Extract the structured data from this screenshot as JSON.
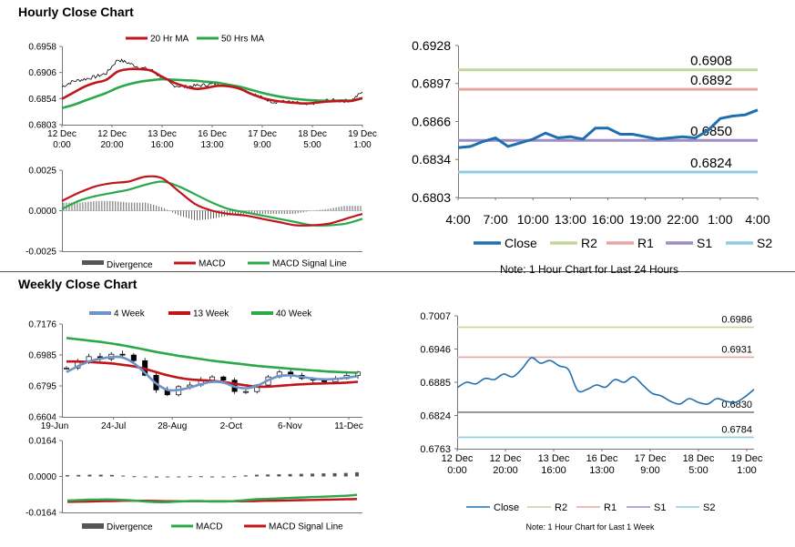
{
  "sections": {
    "hourly_title": "Hourly Close Chart",
    "weekly_title": "Weekly Close Chart"
  },
  "colors": {
    "ma20": "#c0151b",
    "ma50": "#2aa84a",
    "close": "#1f6fb0",
    "r2": "#c4d79b",
    "r1": "#e6a6a6",
    "s1": "#9f8cc4",
    "s2": "#8ecde3",
    "w4": "#6e93c8",
    "w13": "#c0151b",
    "w40": "#2aa84a",
    "divergence": "#555555",
    "gray_level": "#808080"
  },
  "chart_data": [
    {
      "id": "hourly_price",
      "type": "line",
      "legend": [
        "20 Hr MA",
        "50 Hrs MA"
      ],
      "ylim": [
        0.6803,
        0.6958
      ],
      "yticks": [
        "0.6958",
        "0.6906",
        "0.6854",
        "0.6803"
      ],
      "xticks": [
        [
          "12 Dec",
          "0:00"
        ],
        [
          "12 Dec",
          "20:00"
        ],
        [
          "13 Dec",
          "16:00"
        ],
        [
          "16 Dec",
          "13:00"
        ],
        [
          "17 Dec",
          "9:00"
        ],
        [
          "18 Dec",
          "5:00"
        ],
        [
          "19 Dec",
          "1:00"
        ]
      ],
      "series": [
        {
          "name": "Close",
          "color": "#000000",
          "values": [
            0.6878,
            0.6889,
            0.6893,
            0.6898,
            0.6905,
            0.6932,
            0.6925,
            0.6916,
            0.6912,
            0.6895,
            0.6881,
            0.6878,
            0.688,
            0.6882,
            0.6885,
            0.6881,
            0.6876,
            0.6866,
            0.6856,
            0.6848,
            0.6849,
            0.6846,
            0.6842,
            0.6848,
            0.6852,
            0.685,
            0.6851,
            0.6868
          ]
        },
        {
          "name": "20 Hr MA",
          "color": "#c0151b",
          "values": [
            0.6854,
            0.6866,
            0.6878,
            0.6886,
            0.6892,
            0.6908,
            0.6913,
            0.6913,
            0.691,
            0.6898,
            0.6887,
            0.6879,
            0.6874,
            0.6876,
            0.688,
            0.6879,
            0.6874,
            0.6864,
            0.6856,
            0.6851,
            0.6848,
            0.6846,
            0.6845,
            0.6847,
            0.6849,
            0.685,
            0.685,
            0.6856
          ]
        },
        {
          "name": "50 Hrs MA",
          "color": "#2aa84a",
          "values": [
            0.6836,
            0.6842,
            0.685,
            0.6858,
            0.6866,
            0.6876,
            0.6883,
            0.6888,
            0.6891,
            0.6893,
            0.6892,
            0.6891,
            0.689,
            0.6888,
            0.6886,
            0.6882,
            0.6878,
            0.6872,
            0.6866,
            0.6861,
            0.6857,
            0.6854,
            0.6852,
            0.6851,
            0.685,
            0.6851,
            0.6851,
            0.6855
          ]
        }
      ]
    },
    {
      "id": "hourly_macd",
      "type": "line",
      "legend": [
        "Divergence",
        "MACD",
        "MACD Signal Line"
      ],
      "ylim": [
        -0.0025,
        0.0025
      ],
      "yticks": [
        "0.0025",
        "0.0000",
        "-0.0025"
      ],
      "series": [
        {
          "name": "MACD",
          "color": "#c0151b",
          "values": [
            0.0006,
            0.0011,
            0.0015,
            0.0017,
            0.0018,
            0.0021,
            0.002,
            0.0012,
            0.0004,
            0.0,
            -0.0002,
            -0.0003,
            -0.0005,
            -0.0007,
            -0.0009,
            -0.0009,
            -0.0008,
            -0.0005,
            -0.0002
          ]
        },
        {
          "name": "MACD Signal Line",
          "color": "#2aa84a",
          "values": [
            0.0001,
            0.0006,
            0.0009,
            0.0011,
            0.0013,
            0.0016,
            0.0018,
            0.0015,
            0.001,
            0.0005,
            0.0001,
            -0.0001,
            -0.0003,
            -0.0005,
            -0.0007,
            -0.0009,
            -0.0009,
            -0.0008,
            -0.0005
          ]
        },
        {
          "name": "Divergence",
          "color": "#555555",
          "values": [
            0.0005,
            0.0005,
            0.0006,
            0.0006,
            0.0005,
            0.0005,
            0.0002,
            -0.0003,
            -0.0006,
            -0.0005,
            -0.0003,
            -0.0002,
            -0.0002,
            -0.0002,
            -0.0002,
            0.0,
            0.0001,
            0.0003,
            0.0003
          ]
        }
      ]
    },
    {
      "id": "hourly_levels",
      "type": "line",
      "legend": [
        "Close",
        "R2",
        "R1",
        "S1",
        "S2"
      ],
      "ylim": [
        0.6803,
        0.6928
      ],
      "yticks": [
        "0.6928",
        "0.6897",
        "0.6866",
        "0.6834",
        "0.6803"
      ],
      "xticks": [
        "4:00",
        "7:00",
        "10:00",
        "13:00",
        "16:00",
        "19:00",
        "22:00",
        "1:00",
        "4:00"
      ],
      "levels": {
        "R2": 0.6908,
        "R1": 0.6892,
        "S1": 0.685,
        "S2": 0.6824
      },
      "level_labels": {
        "R2": "0.6908",
        "R1": "0.6892",
        "S1": "0.6850",
        "S2": "0.6824"
      },
      "series": [
        {
          "name": "Close",
          "color": "#1f6fb0",
          "values": [
            0.6844,
            0.6845,
            0.6849,
            0.6852,
            0.6845,
            0.6848,
            0.6851,
            0.6856,
            0.6852,
            0.6853,
            0.6851,
            0.686,
            0.686,
            0.6855,
            0.6855,
            0.6853,
            0.6851,
            0.6852,
            0.6853,
            0.6852,
            0.6858,
            0.6868,
            0.687,
            0.6871,
            0.6875
          ]
        }
      ],
      "note": "Note: 1 Hour Chart for Last 24 Hours"
    },
    {
      "id": "weekly_price",
      "type": "line",
      "legend": [
        "4 Week",
        "13 Week",
        "40 Week"
      ],
      "ylim": [
        0.6604,
        0.7176
      ],
      "yticks": [
        "0.7176",
        "0.6985",
        "0.6795",
        "0.6604"
      ],
      "xticks": [
        "19-Jun",
        "24-Jul",
        "28-Aug",
        "2-Oct",
        "6-Nov",
        "11-Dec"
      ],
      "series": [
        {
          "name": "Close",
          "color": "#000000",
          "values": [
            0.6905,
            0.694,
            0.6975,
            0.696,
            0.699,
            0.6985,
            0.695,
            0.686,
            0.677,
            0.674,
            0.679,
            0.68,
            0.683,
            0.685,
            0.683,
            0.676,
            0.676,
            0.68,
            0.685,
            0.688,
            0.686,
            0.684,
            0.683,
            0.682,
            0.684,
            0.686,
            0.688
          ]
        },
        {
          "name": "4 Week",
          "color": "#6e93c8",
          "values": [
            0.688,
            0.6915,
            0.6945,
            0.6962,
            0.6972,
            0.697,
            0.6935,
            0.6875,
            0.681,
            0.677,
            0.677,
            0.6785,
            0.6805,
            0.682,
            0.6815,
            0.679,
            0.678,
            0.6795,
            0.683,
            0.6855,
            0.686,
            0.685,
            0.684,
            0.6835,
            0.6838,
            0.6845,
            0.6855
          ]
        },
        {
          "name": "13 Week",
          "color": "#c0151b",
          "values": [
            0.6945,
            0.6945,
            0.6942,
            0.6938,
            0.6933,
            0.6925,
            0.6915,
            0.69,
            0.688,
            0.686,
            0.6845,
            0.6835,
            0.683,
            0.6825,
            0.6818,
            0.6808,
            0.6798,
            0.679,
            0.679,
            0.6795,
            0.68,
            0.6805,
            0.6808,
            0.681,
            0.6812,
            0.6815,
            0.682
          ]
        },
        {
          "name": "40 Week",
          "color": "#2aa84a",
          "values": [
            0.709,
            0.7082,
            0.7074,
            0.7066,
            0.7056,
            0.7045,
            0.7032,
            0.7018,
            0.7004,
            0.6992,
            0.698,
            0.697,
            0.696,
            0.695,
            0.6942,
            0.6934,
            0.6926,
            0.6918,
            0.6912,
            0.6906,
            0.69,
            0.6895,
            0.689,
            0.6885,
            0.6881,
            0.6878,
            0.6876
          ]
        }
      ]
    },
    {
      "id": "weekly_macd",
      "type": "line",
      "legend": [
        "Divergence",
        "MACD",
        "MACD Signal Line"
      ],
      "ylim": [
        -0.0164,
        0.0164
      ],
      "yticks": [
        "0.0164",
        "0.0000",
        "-0.0164"
      ],
      "series": [
        {
          "name": "MACD",
          "color": "#2aa84a",
          "values": [
            -0.011,
            -0.0108,
            -0.0106,
            -0.0105,
            -0.0105,
            -0.0107,
            -0.011,
            -0.0114,
            -0.0117,
            -0.0117,
            -0.0114,
            -0.0112,
            -0.0112,
            -0.0114,
            -0.0114,
            -0.0112,
            -0.0108,
            -0.0104,
            -0.0102,
            -0.01,
            -0.0098,
            -0.0096,
            -0.0094,
            -0.0092,
            -0.009,
            -0.0088,
            -0.0084
          ]
        },
        {
          "name": "MACD Signal Line",
          "color": "#c0151b",
          "values": [
            -0.0116,
            -0.0115,
            -0.0114,
            -0.0113,
            -0.0112,
            -0.0111,
            -0.0111,
            -0.0111,
            -0.0112,
            -0.0113,
            -0.0113,
            -0.0113,
            -0.0113,
            -0.0113,
            -0.0113,
            -0.0113,
            -0.0113,
            -0.0112,
            -0.0111,
            -0.011,
            -0.0109,
            -0.0108,
            -0.0107,
            -0.0106,
            -0.0105,
            -0.0104,
            -0.0103
          ]
        },
        {
          "name": "Divergence",
          "color": "#555555",
          "values": [
            0.0006,
            0.0007,
            0.0008,
            0.0008,
            0.0007,
            0.0004,
            0.0001,
            -0.0003,
            -0.0005,
            -0.0004,
            -0.0001,
            0.0001,
            0.0001,
            -0.0001,
            -0.0001,
            0.0001,
            0.0005,
            0.0008,
            0.0009,
            0.001,
            0.0011,
            0.0012,
            0.0013,
            0.0014,
            0.0015,
            0.0016,
            0.0019
          ]
        }
      ]
    },
    {
      "id": "weekly_levels",
      "type": "line",
      "legend": [
        "Close",
        "R2",
        "R1",
        "S1",
        "S2"
      ],
      "ylim": [
        0.6763,
        0.7007
      ],
      "yticks": [
        "0.7007",
        "0.6946",
        "0.6885",
        "0.6824",
        "0.6763"
      ],
      "xticks": [
        [
          "12 Dec",
          "0:00"
        ],
        [
          "12 Dec",
          "20:00"
        ],
        [
          "13 Dec",
          "16:00"
        ],
        [
          "16 Dec",
          "13:00"
        ],
        [
          "17 Dec",
          "9:00"
        ],
        [
          "18 Dec",
          "5:00"
        ],
        [
          "19 Dec",
          "1:00"
        ]
      ],
      "levels": {
        "R2": 0.6986,
        "R1": 0.6931,
        "S1": 0.683,
        "S2": 0.6784
      },
      "level_labels": {
        "R2": "0.6986",
        "R1": "0.6931",
        "S1": "0.6830",
        "S2": "0.6784"
      },
      "series": [
        {
          "name": "Close",
          "color": "#1f6fb0",
          "values": [
            0.6875,
            0.6885,
            0.6882,
            0.6892,
            0.689,
            0.69,
            0.6895,
            0.691,
            0.693,
            0.692,
            0.6925,
            0.6915,
            0.6908,
            0.687,
            0.6872,
            0.688,
            0.6876,
            0.689,
            0.6885,
            0.6895,
            0.688,
            0.6865,
            0.686,
            0.685,
            0.6845,
            0.6855,
            0.6848,
            0.6845,
            0.6855,
            0.685,
            0.6848,
            0.6858,
            0.6872
          ]
        }
      ],
      "note": "Note: 1 Hour Chart for Last 1 Week"
    }
  ]
}
